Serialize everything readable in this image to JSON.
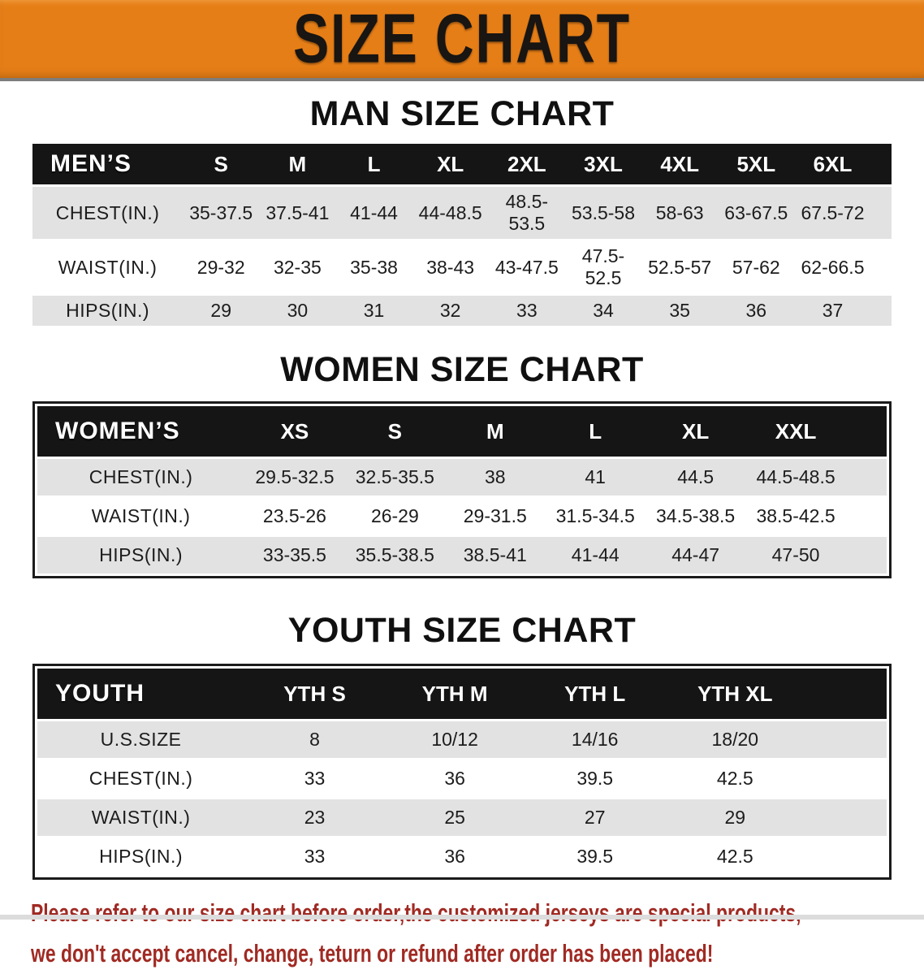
{
  "banner": {
    "title": "SIZE CHART"
  },
  "sections": [
    {
      "id": "men",
      "heading": "MAN SIZE CHART",
      "table": {
        "header": [
          "MEN’S",
          "S",
          "M",
          "L",
          "XL",
          "2XL",
          "3XL",
          "4XL",
          "5XL",
          "6XL"
        ],
        "rows": [
          {
            "label": "CHEST(IN.)",
            "values": [
              "35-37.5",
              "37.5-41",
              "41-44",
              "44-48.5",
              "48.5-53.5",
              "53.5-58",
              "58-63",
              "63-67.5",
              "67.5-72"
            ]
          },
          {
            "label": "WAIST(IN.)",
            "values": [
              "29-32",
              "32-35",
              "35-38",
              "38-43",
              "43-47.5",
              "47.5-52.5",
              "52.5-57",
              "57-62",
              "62-66.5"
            ]
          },
          {
            "label": "HIPS(IN.)",
            "values": [
              "29",
              "30",
              "31",
              "32",
              "33",
              "34",
              "35",
              "36",
              "37"
            ]
          }
        ]
      }
    },
    {
      "id": "women",
      "heading": "WOMEN SIZE CHART",
      "table": {
        "header": [
          "WOMEN’S",
          "XS",
          "S",
          "M",
          "L",
          "XL",
          "XXL"
        ],
        "rows": [
          {
            "label": "CHEST(IN.)",
            "values": [
              "29.5-32.5",
              "32.5-35.5",
              "38",
              "41",
              "44.5",
              "44.5-48.5"
            ]
          },
          {
            "label": "WAIST(IN.)",
            "values": [
              "23.5-26",
              "26-29",
              "29-31.5",
              "31.5-34.5",
              "34.5-38.5",
              "38.5-42.5"
            ]
          },
          {
            "label": "HIPS(IN.)",
            "values": [
              "33-35.5",
              "35.5-38.5",
              "38.5-41",
              "41-44",
              "44-47",
              "47-50"
            ]
          }
        ]
      }
    },
    {
      "id": "youth",
      "heading": "YOUTH SIZE CHART",
      "table": {
        "header": [
          "YOUTH",
          "YTH S",
          "YTH M",
          "YTH L",
          "YTH XL"
        ],
        "rows": [
          {
            "label": "U.S.SIZE",
            "values": [
              "8",
              "10/12",
              "14/16",
              "18/20"
            ]
          },
          {
            "label": "CHEST(IN.)",
            "values": [
              "33",
              "36",
              "39.5",
              "42.5"
            ]
          },
          {
            "label": "WAIST(IN.)",
            "values": [
              "23",
              "25",
              "27",
              "29"
            ]
          },
          {
            "label": "HIPS(IN.)",
            "values": [
              "33",
              "36",
              "39.5",
              "42.5"
            ]
          }
        ]
      }
    }
  ],
  "notice": {
    "lines": [
      "Please refer to our size chart before order,the customized jerseys are special products,",
      "we don't accept cancel, change, teturn or refund after order has been placed!"
    ]
  },
  "colors": {
    "banner_bg": "#e67e17",
    "header_bar": "#151515",
    "row_shade": "#e2e2e2",
    "notice_text": "#a02a23"
  }
}
